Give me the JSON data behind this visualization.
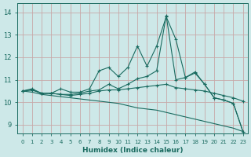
{
  "xlabel": "Humidex (Indice chaleur)",
  "xlim": [
    -0.5,
    23.5
  ],
  "ylim": [
    8.6,
    14.4
  ],
  "xticks": [
    0,
    1,
    2,
    3,
    4,
    5,
    6,
    7,
    8,
    9,
    10,
    11,
    12,
    13,
    14,
    15,
    16,
    17,
    18,
    19,
    20,
    21,
    22,
    23
  ],
  "yticks": [
    9,
    10,
    11,
    12,
    13,
    14
  ],
  "bg_color": "#cde8e8",
  "grid_color": "#c8a8a8",
  "line_color": "#1a6b60",
  "lines": [
    {
      "x": [
        0,
        1,
        2,
        3,
        4,
        5,
        6,
        7,
        8,
        9,
        10,
        11,
        12,
        13,
        14,
        15,
        16,
        17,
        18,
        19,
        20,
        21,
        22,
        23
      ],
      "y": [
        10.5,
        10.6,
        10.4,
        10.4,
        10.6,
        10.45,
        10.45,
        10.6,
        11.4,
        11.55,
        11.15,
        11.55,
        12.5,
        11.6,
        12.5,
        13.8,
        12.8,
        11.1,
        11.35,
        10.8,
        10.2,
        10.1,
        9.95,
        8.7
      ],
      "markers": true
    },
    {
      "x": [
        0,
        1,
        2,
        3,
        4,
        5,
        6,
        7,
        8,
        9,
        10,
        11,
        12,
        13,
        14,
        15,
        16,
        17,
        18,
        19,
        20,
        21,
        22,
        23
      ],
      "y": [
        10.5,
        10.55,
        10.4,
        10.4,
        10.35,
        10.35,
        10.4,
        10.5,
        10.55,
        10.8,
        10.6,
        10.8,
        11.05,
        11.15,
        11.4,
        13.85,
        11.0,
        11.1,
        11.3,
        10.8,
        10.2,
        10.1,
        9.95,
        8.7
      ],
      "markers": true
    },
    {
      "x": [
        0,
        1,
        2,
        3,
        4,
        5,
        6,
        7,
        8,
        9,
        10,
        11,
        12,
        13,
        14,
        15,
        16,
        17,
        18,
        19,
        20,
        21,
        22,
        23
      ],
      "y": [
        10.5,
        10.55,
        10.4,
        10.4,
        10.35,
        10.3,
        10.35,
        10.4,
        10.5,
        10.55,
        10.55,
        10.6,
        10.65,
        10.7,
        10.75,
        10.8,
        10.65,
        10.6,
        10.55,
        10.5,
        10.4,
        10.3,
        10.2,
        10.05
      ],
      "markers": true
    },
    {
      "x": [
        0,
        1,
        2,
        3,
        4,
        5,
        6,
        7,
        8,
        9,
        10,
        11,
        12,
        13,
        14,
        15,
        16,
        17,
        18,
        19,
        20,
        21,
        22,
        23
      ],
      "y": [
        10.5,
        10.45,
        10.35,
        10.3,
        10.25,
        10.2,
        10.15,
        10.1,
        10.05,
        10.0,
        9.95,
        9.85,
        9.75,
        9.7,
        9.65,
        9.55,
        9.45,
        9.35,
        9.25,
        9.15,
        9.05,
        8.95,
        8.85,
        8.7
      ],
      "markers": false
    }
  ]
}
